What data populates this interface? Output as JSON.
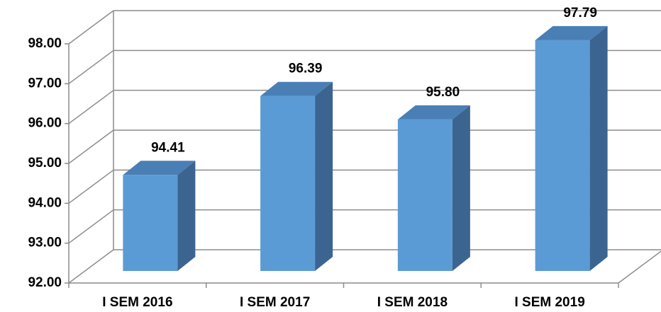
{
  "chart_data": {
    "type": "bar3d",
    "categories": [
      "I SEM 2016",
      "I SEM 2017",
      "I SEM 2018",
      "I SEM 2019"
    ],
    "values": [
      94.41,
      96.39,
      95.8,
      97.79
    ],
    "value_labels": [
      "94.41",
      "96.39",
      "95.80",
      "97.79"
    ],
    "color": "#5b9bd5",
    "ylim": [
      92,
      98
    ],
    "yticks": [
      {
        "value": 92,
        "label": "92.00"
      },
      {
        "value": 93,
        "label": "93.00"
      },
      {
        "value": 94,
        "label": "94.00"
      },
      {
        "value": 95,
        "label": "95.00"
      },
      {
        "value": 96,
        "label": "96.00"
      },
      {
        "value": 97,
        "label": "97.00"
      },
      {
        "value": 98,
        "label": "98.00"
      }
    ],
    "grid": true
  }
}
